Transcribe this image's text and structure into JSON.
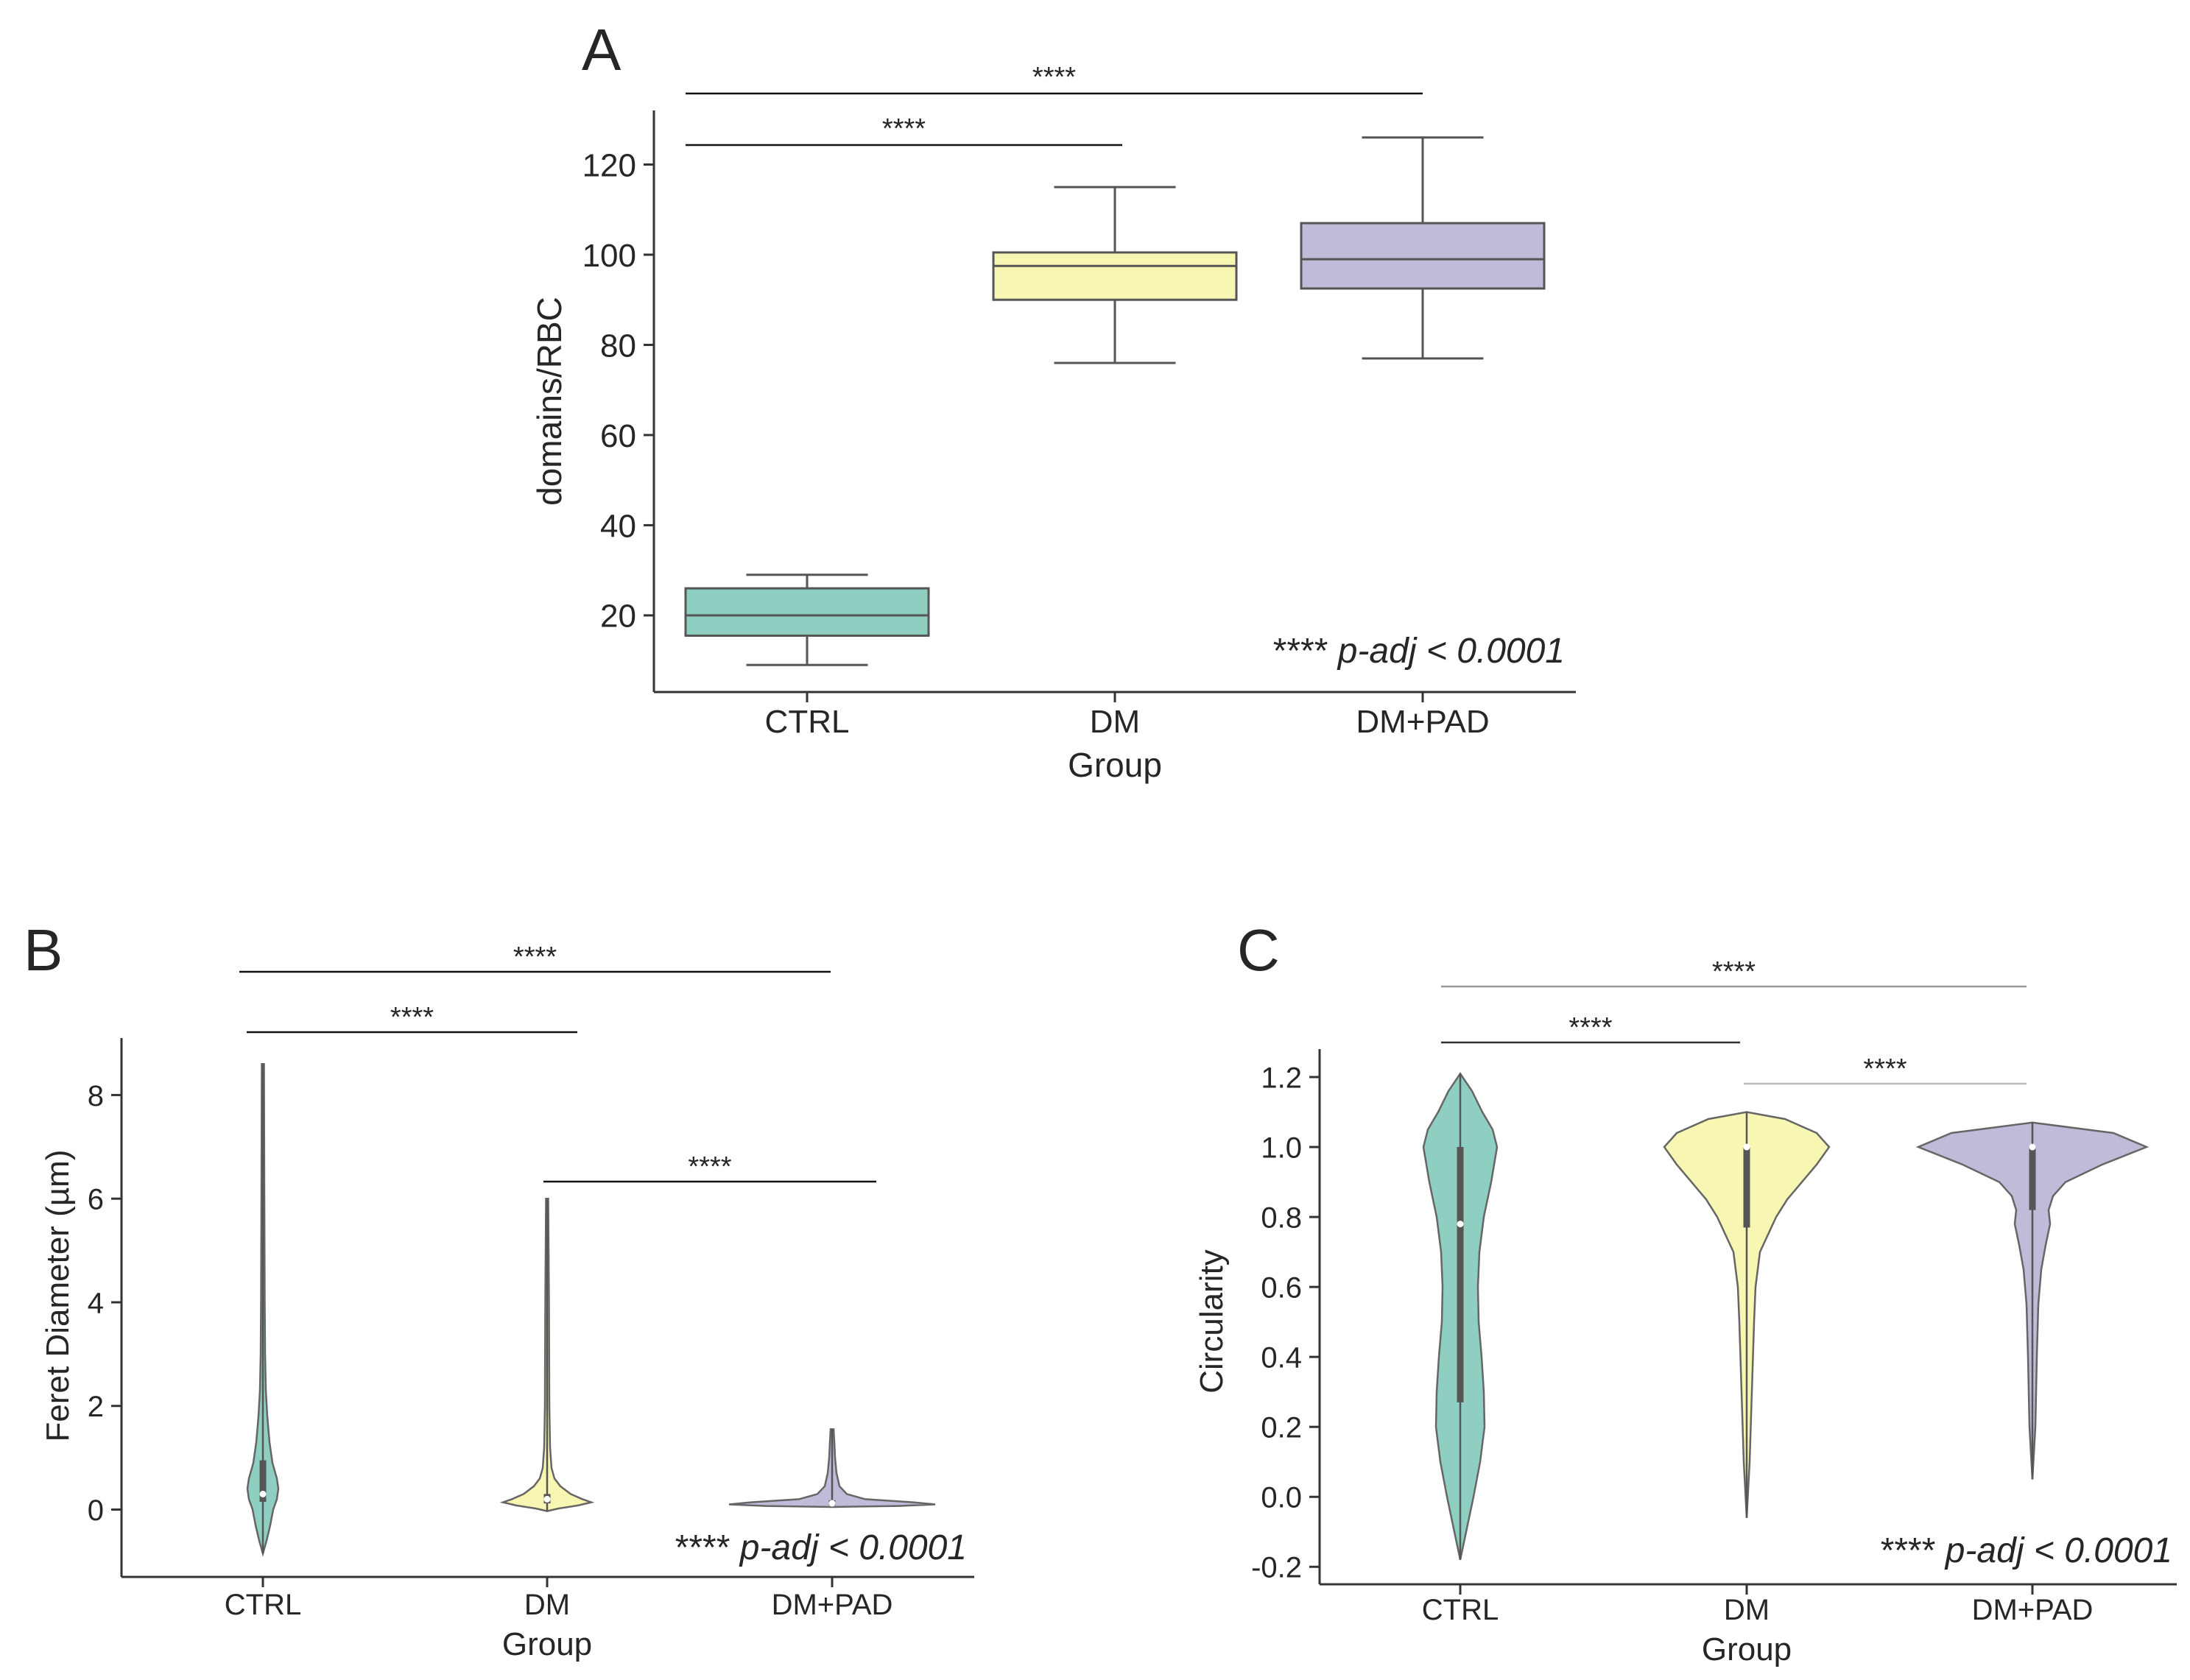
{
  "chart_data": [
    {
      "panel_label": "A",
      "type": "box",
      "xlabel": "Group",
      "ylabel": "domains/RBC",
      "categories": [
        "CTRL",
        "DM",
        "DM+PAD"
      ],
      "colors": [
        "#8ecfc2",
        "#f7f7b3",
        "#bfbbd9"
      ],
      "yticks": [
        20,
        40,
        60,
        80,
        100,
        120
      ],
      "ylim": [
        3,
        132
      ],
      "boxes": [
        {
          "group": "CTRL",
          "min": 9,
          "q1": 15.5,
          "median": 20,
          "q3": 26,
          "max": 29
        },
        {
          "group": "DM",
          "min": 76,
          "q1": 90,
          "median": 97.5,
          "q3": 100.5,
          "max": 115
        },
        {
          "group": "DM+PAD",
          "min": 77,
          "q1": 92.5,
          "median": 99,
          "q3": 107,
          "max": 126
        }
      ],
      "significance": [
        {
          "from": "CTRL",
          "to": "DM",
          "label": "****"
        },
        {
          "from": "CTRL",
          "to": "DM+PAD",
          "label": "****"
        }
      ],
      "note_stars": "****",
      "note_text": "p-adj < 0.0001"
    },
    {
      "panel_label": "B",
      "type": "violin",
      "xlabel": "Group",
      "ylabel": "Feret Diameter (µm)",
      "categories": [
        "CTRL",
        "DM",
        "DM+PAD"
      ],
      "colors": [
        "#8ecfc2",
        "#f7f7b3",
        "#bfbbd9"
      ],
      "yticks": [
        0,
        2,
        4,
        6,
        8
      ],
      "ylim": [
        -1.3,
        9.1
      ],
      "violins": [
        {
          "group": "CTRL",
          "min": -0.85,
          "max": 8.6,
          "median": 0.3,
          "q1": 0.15,
          "q3": 0.95
        },
        {
          "group": "DM",
          "min": -0.03,
          "max": 6.0,
          "median": 0.2,
          "q1": 0.12,
          "q3": 0.3
        },
        {
          "group": "DM+PAD",
          "min": 0.05,
          "max": 1.55,
          "median": 0.12,
          "q1": 0.08,
          "q3": 0.18
        }
      ],
      "significance": [
        {
          "from": "CTRL",
          "to": "DM",
          "label": "****"
        },
        {
          "from": "CTRL",
          "to": "DM+PAD",
          "label": "****"
        },
        {
          "from": "DM",
          "to": "DM+PAD",
          "label": "****"
        }
      ],
      "note_stars": "****",
      "note_text": "p-adj < 0.0001"
    },
    {
      "panel_label": "C",
      "type": "violin",
      "xlabel": "Group",
      "ylabel": "Circularity",
      "categories": [
        "CTRL",
        "DM",
        "DM+PAD"
      ],
      "colors": [
        "#8ecfc2",
        "#f7f7b3",
        "#bfbbd9"
      ],
      "yticks": [
        "-0.2",
        "0.0",
        "0.2",
        "0.4",
        "0.6",
        "0.8",
        "1.0",
        "1.2"
      ],
      "ylim": [
        -0.25,
        1.28
      ],
      "violins": [
        {
          "group": "CTRL",
          "min": -0.18,
          "max": 1.21,
          "median": 0.78,
          "q1": 0.27,
          "q3": 1.0
        },
        {
          "group": "DM",
          "min": -0.06,
          "max": 1.1,
          "median": 1.0,
          "q1": 0.77,
          "q3": 1.0
        },
        {
          "group": "DM+PAD",
          "min": 0.05,
          "max": 1.07,
          "median": 1.0,
          "q1": 0.82,
          "q3": 1.0
        }
      ],
      "significance": [
        {
          "from": "CTRL",
          "to": "DM",
          "label": "****"
        },
        {
          "from": "CTRL",
          "to": "DM+PAD",
          "label": "****"
        },
        {
          "from": "DM",
          "to": "DM+PAD",
          "label": "****"
        }
      ],
      "note_stars": "****",
      "note_text": "p-adj < 0.0001"
    }
  ]
}
